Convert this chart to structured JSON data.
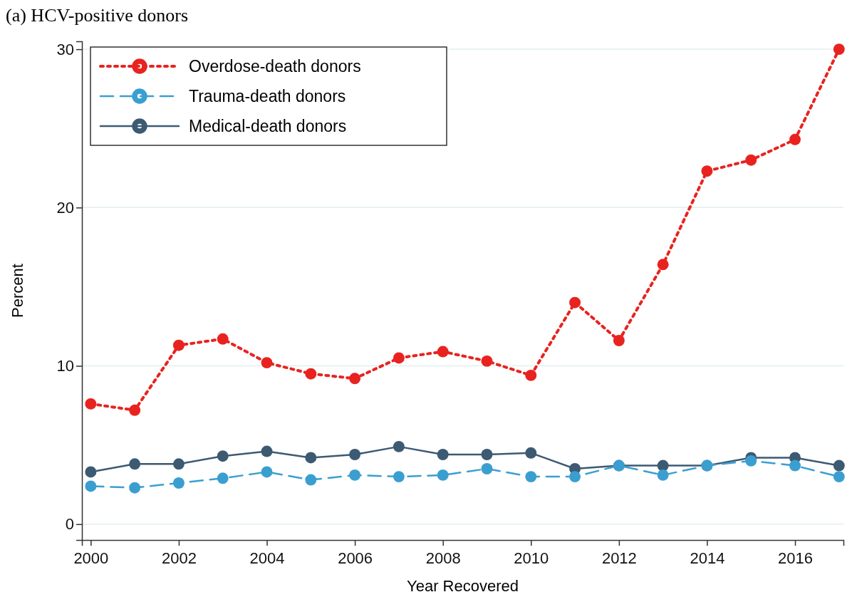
{
  "chart_data": {
    "type": "line",
    "title": "(a) HCV-positive donors",
    "xlabel": "Year Recovered",
    "ylabel": "Percent",
    "x": [
      2000,
      2001,
      2002,
      2003,
      2004,
      2005,
      2006,
      2007,
      2008,
      2009,
      2010,
      2011,
      2012,
      2013,
      2014,
      2015,
      2016,
      2017
    ],
    "series": [
      {
        "name": "Overdose-death donors",
        "color": "#e8231f",
        "line_style": "dotted",
        "values": [
          7.6,
          7.2,
          11.3,
          11.7,
          10.2,
          9.5,
          9.2,
          10.5,
          10.9,
          10.3,
          9.4,
          14.0,
          11.6,
          16.4,
          22.3,
          23.0,
          24.3,
          30.0
        ]
      },
      {
        "name": "Trauma-death donors",
        "color": "#3a9fd0",
        "line_style": "dashed",
        "values": [
          2.4,
          2.3,
          2.6,
          2.9,
          3.3,
          2.8,
          3.1,
          3.0,
          3.1,
          3.5,
          3.0,
          3.0,
          3.7,
          3.1,
          3.7,
          4.0,
          3.7,
          3.0
        ]
      },
      {
        "name": "Medical-death donors",
        "color": "#3d5a73",
        "line_style": "solid",
        "values": [
          3.3,
          3.8,
          3.8,
          4.3,
          4.6,
          4.2,
          4.4,
          4.9,
          4.4,
          4.4,
          4.5,
          3.5,
          3.7,
          3.7,
          3.7,
          4.2,
          4.2,
          3.7
        ]
      }
    ],
    "xlim": [
      1999.8,
      2017.1
    ],
    "xticks": [
      2000,
      2002,
      2004,
      2006,
      2008,
      2010,
      2012,
      2014,
      2016
    ],
    "ylim": [
      -1,
      30.5
    ],
    "yticks": [
      0,
      10,
      20,
      30
    ],
    "grid": "y",
    "legend": "top left",
    "marker": "circle"
  }
}
